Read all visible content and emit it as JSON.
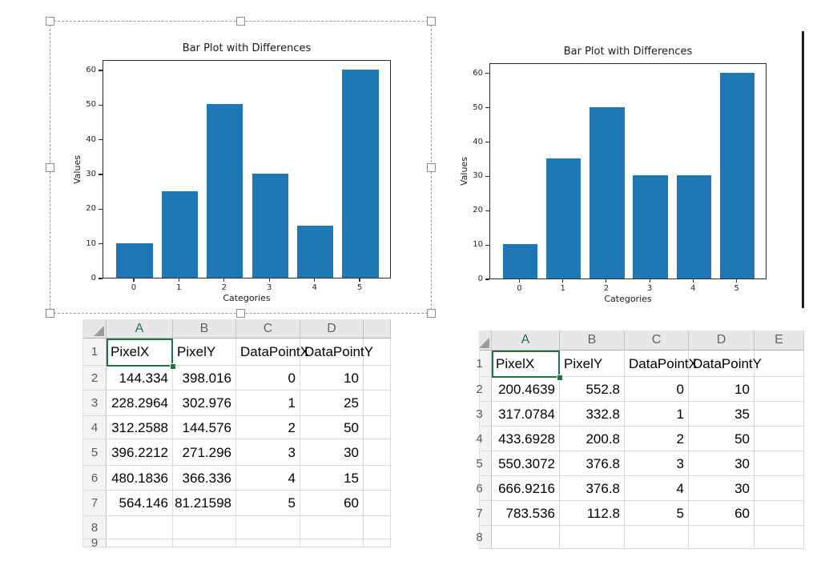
{
  "chart_data": [
    {
      "id": "left-chart",
      "type": "bar",
      "title": "Bar Plot with Differences",
      "xlabel": "Categories",
      "ylabel": "Values",
      "categories": [
        "0",
        "1",
        "2",
        "3",
        "4",
        "5"
      ],
      "values": [
        10,
        25,
        50,
        30,
        15,
        60
      ],
      "yticks": [
        "0",
        "10",
        "20",
        "30",
        "40",
        "50",
        "60"
      ],
      "xlim": [
        -0.69,
        5.69
      ],
      "ylim": [
        0,
        63
      ],
      "bar_width": 0.8,
      "bar_color": "#1f77b4",
      "grid": false,
      "legend": "none"
    },
    {
      "id": "right-chart",
      "type": "bar",
      "title": "Bar Plot with Differences",
      "xlabel": "Categories",
      "ylabel": "Values",
      "categories": [
        "0",
        "1",
        "2",
        "3",
        "4",
        "5"
      ],
      "values": [
        10,
        35,
        50,
        30,
        30,
        60
      ],
      "yticks": [
        "0",
        "10",
        "20",
        "30",
        "40",
        "50",
        "60"
      ],
      "xlim": [
        -0.69,
        5.69
      ],
      "ylim": [
        0,
        63
      ],
      "bar_width": 0.8,
      "bar_color": "#1f77b4",
      "grid": false,
      "legend": "none"
    }
  ],
  "tables": {
    "left": {
      "column_letters": [
        "A",
        "B",
        "C",
        "D",
        ""
      ],
      "row_numbers": [
        "1",
        "2",
        "3",
        "4",
        "5",
        "6",
        "7",
        "8",
        "9"
      ],
      "header_row": [
        "PixelX",
        "PixelY",
        "DataPointX",
        "DataPointY",
        ""
      ],
      "rows": [
        [
          "144.334",
          "398.016",
          "0",
          "10",
          ""
        ],
        [
          "228.2964",
          "302.976",
          "1",
          "25",
          ""
        ],
        [
          "312.2588",
          "144.576",
          "2",
          "50",
          ""
        ],
        [
          "396.2212",
          "271.296",
          "3",
          "30",
          ""
        ],
        [
          "480.1836",
          "366.336",
          "4",
          "15",
          ""
        ],
        [
          "564.146",
          "81.21598",
          "5",
          "60",
          ""
        ],
        [
          "",
          "",
          "",
          "",
          ""
        ],
        [
          "",
          "",
          "",
          "",
          ""
        ]
      ],
      "selected_cell": "A1"
    },
    "right": {
      "column_letters": [
        "A",
        "B",
        "C",
        "D",
        "E"
      ],
      "row_numbers": [
        "1",
        "2",
        "3",
        "4",
        "5",
        "6",
        "7",
        "8"
      ],
      "header_row": [
        "PixelX",
        "PixelY",
        "DataPointX",
        "DataPointY",
        ""
      ],
      "rows": [
        [
          "200.4639",
          "552.8",
          "0",
          "10",
          ""
        ],
        [
          "317.0784",
          "332.8",
          "1",
          "35",
          ""
        ],
        [
          "433.6928",
          "200.8",
          "2",
          "50",
          ""
        ],
        [
          "550.3072",
          "376.8",
          "3",
          "30",
          ""
        ],
        [
          "666.9216",
          "376.8",
          "4",
          "30",
          ""
        ],
        [
          "783.536",
          "112.8",
          "5",
          "60",
          ""
        ],
        [
          "",
          "",
          "",
          "",
          ""
        ]
      ],
      "selected_cell": "A1"
    }
  },
  "colors": {
    "bar_blue": "#1f77b4",
    "excel_green": "#217346",
    "header_gray": "#e7e7e7",
    "gridline": "#d9d9d9",
    "divider": "#1c1c1c"
  }
}
